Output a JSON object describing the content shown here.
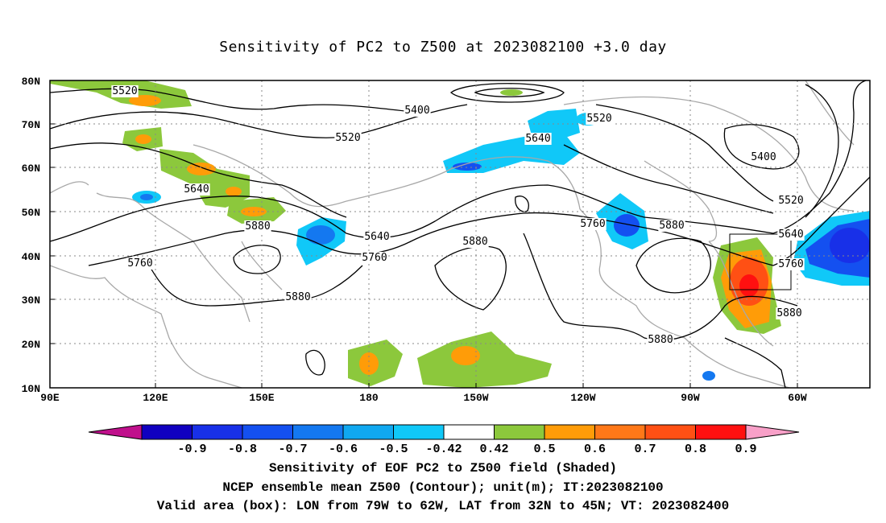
{
  "title": "Sensitivity of PC2 to Z500 at 2023082100 +3.0 day",
  "lat_labels": [
    "80N",
    "70N",
    "60N",
    "50N",
    "40N",
    "30N",
    "20N",
    "10N"
  ],
  "lon_labels": [
    "90E",
    "120E",
    "150E",
    "180",
    "150W",
    "120W",
    "90W",
    "60W"
  ],
  "contour_labels": [
    "5520",
    "5400",
    "5520",
    "5520",
    "5640",
    "5400",
    "5520",
    "5640",
    "5880",
    "5640",
    "5760",
    "5880",
    "5760",
    "5880",
    "5640",
    "5760",
    "5880",
    "5880",
    "5880",
    "5760"
  ],
  "colorbar": {
    "labels": [
      "-0.9",
      "-0.8",
      "-0.7",
      "-0.6",
      "-0.5",
      "-0.42",
      "0.42",
      "0.5",
      "0.6",
      "0.7",
      "0.8",
      "0.9"
    ],
    "colors": [
      "#c0108c",
      "#1000c0",
      "#1830e8",
      "#1450f0",
      "#1478f0",
      "#10a8f0",
      "#10c8f8",
      "#ffffff",
      "#8cc83c",
      "#ff9c08",
      "#ff7818",
      "#ff5014",
      "#ff1010",
      "#f8a0c8"
    ]
  },
  "footer": {
    "line1": "Sensitivity of EOF PC2 to Z500 field (Shaded)",
    "line2": "NCEP ensemble mean Z500 (Contour); unit(m); IT:2023082100",
    "line3": "Valid area (box): LON from 79W to 62W, LAT from 32N to 45N; VT: 2023082400"
  }
}
